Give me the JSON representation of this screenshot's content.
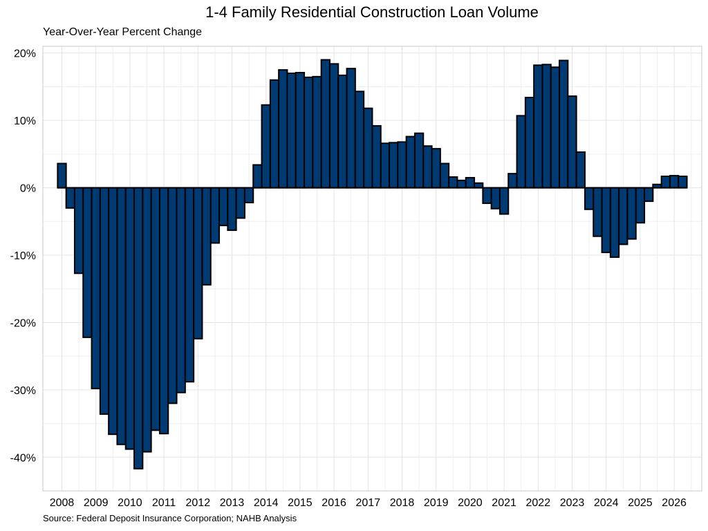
{
  "colors": {
    "bar_fill": "#003a73",
    "bar_stroke": "#000000",
    "grid": "#e3e3e3",
    "panel_border": "#c8c8c8"
  },
  "chart_data": {
    "type": "bar",
    "title": "1-4 Family Residential Construction Loan Volume",
    "subtitle": "Year-Over-Year Percent Change",
    "source": "Source: Federal Deposit Insurance Corporation; NAHB Analysis",
    "xlabel": "",
    "ylabel": "",
    "grid": true,
    "ylim": [
      -45,
      21
    ],
    "yticks": [
      20,
      10,
      0,
      -10,
      -20,
      -30,
      -40
    ],
    "ytick_labels": [
      "20%",
      "10%",
      "0%",
      "-10%",
      "-20%",
      "-30%",
      "-40%"
    ],
    "xtick_labels": [
      "2008",
      "2009",
      "2010",
      "2011",
      "2012",
      "2013",
      "2014",
      "2015",
      "2016",
      "2017",
      "2018",
      "2019",
      "2020",
      "2021",
      "2022",
      "2023",
      "2024",
      "2025",
      "2026"
    ],
    "categories": [
      "2008Q1",
      "2008Q2",
      "2008Q3",
      "2008Q4",
      "2009Q1",
      "2009Q2",
      "2009Q3",
      "2009Q4",
      "2010Q1",
      "2010Q2",
      "2010Q3",
      "2010Q4",
      "2011Q1",
      "2011Q2",
      "2011Q3",
      "2011Q4",
      "2012Q1",
      "2012Q2",
      "2012Q3",
      "2012Q4",
      "2013Q1",
      "2013Q2",
      "2013Q3",
      "2013Q4",
      "2014Q1",
      "2014Q2",
      "2014Q3",
      "2014Q4",
      "2015Q1",
      "2015Q2",
      "2015Q3",
      "2015Q4",
      "2016Q1",
      "2016Q2",
      "2016Q3",
      "2016Q4",
      "2017Q1",
      "2017Q2",
      "2017Q3",
      "2017Q4",
      "2018Q1",
      "2018Q2",
      "2018Q3",
      "2018Q4",
      "2019Q1",
      "2019Q2",
      "2019Q3",
      "2019Q4",
      "2020Q1",
      "2020Q2",
      "2020Q3",
      "2020Q4",
      "2021Q1",
      "2021Q2",
      "2021Q3",
      "2021Q4",
      "2022Q1",
      "2022Q2",
      "2022Q3",
      "2022Q4",
      "2023Q1",
      "2023Q2",
      "2023Q3",
      "2023Q4",
      "2024Q1",
      "2024Q2",
      "2024Q3",
      "2024Q4",
      "2025Q1",
      "2025Q2",
      "2025Q3",
      "2025Q4",
      "2026Q1",
      "2026Q2"
    ],
    "values": [
      3.6,
      -3.0,
      -12.7,
      -22.2,
      -29.8,
      -33.6,
      -36.6,
      -38.1,
      -38.8,
      -41.7,
      -39.2,
      -36.0,
      -36.5,
      -32.0,
      -30.4,
      -28.8,
      -22.4,
      -14.4,
      -8.2,
      -5.6,
      -6.3,
      -4.5,
      -2.2,
      3.4,
      12.3,
      16.0,
      17.5,
      17.0,
      17.1,
      16.4,
      16.5,
      19.0,
      18.4,
      16.7,
      17.7,
      14.3,
      11.8,
      9.2,
      6.6,
      6.7,
      6.8,
      7.6,
      8.1,
      6.2,
      5.8,
      3.6,
      1.6,
      1.1,
      1.5,
      0.7,
      -2.3,
      -3.1,
      -3.9,
      2.1,
      10.7,
      13.4,
      18.2,
      18.3,
      17.9,
      18.9,
      13.6,
      5.3,
      -3.2,
      -7.2,
      -9.6,
      -10.3,
      -8.4,
      -7.6,
      -5.2,
      -2.0,
      0.5,
      1.7,
      1.8,
      1.7
    ]
  }
}
